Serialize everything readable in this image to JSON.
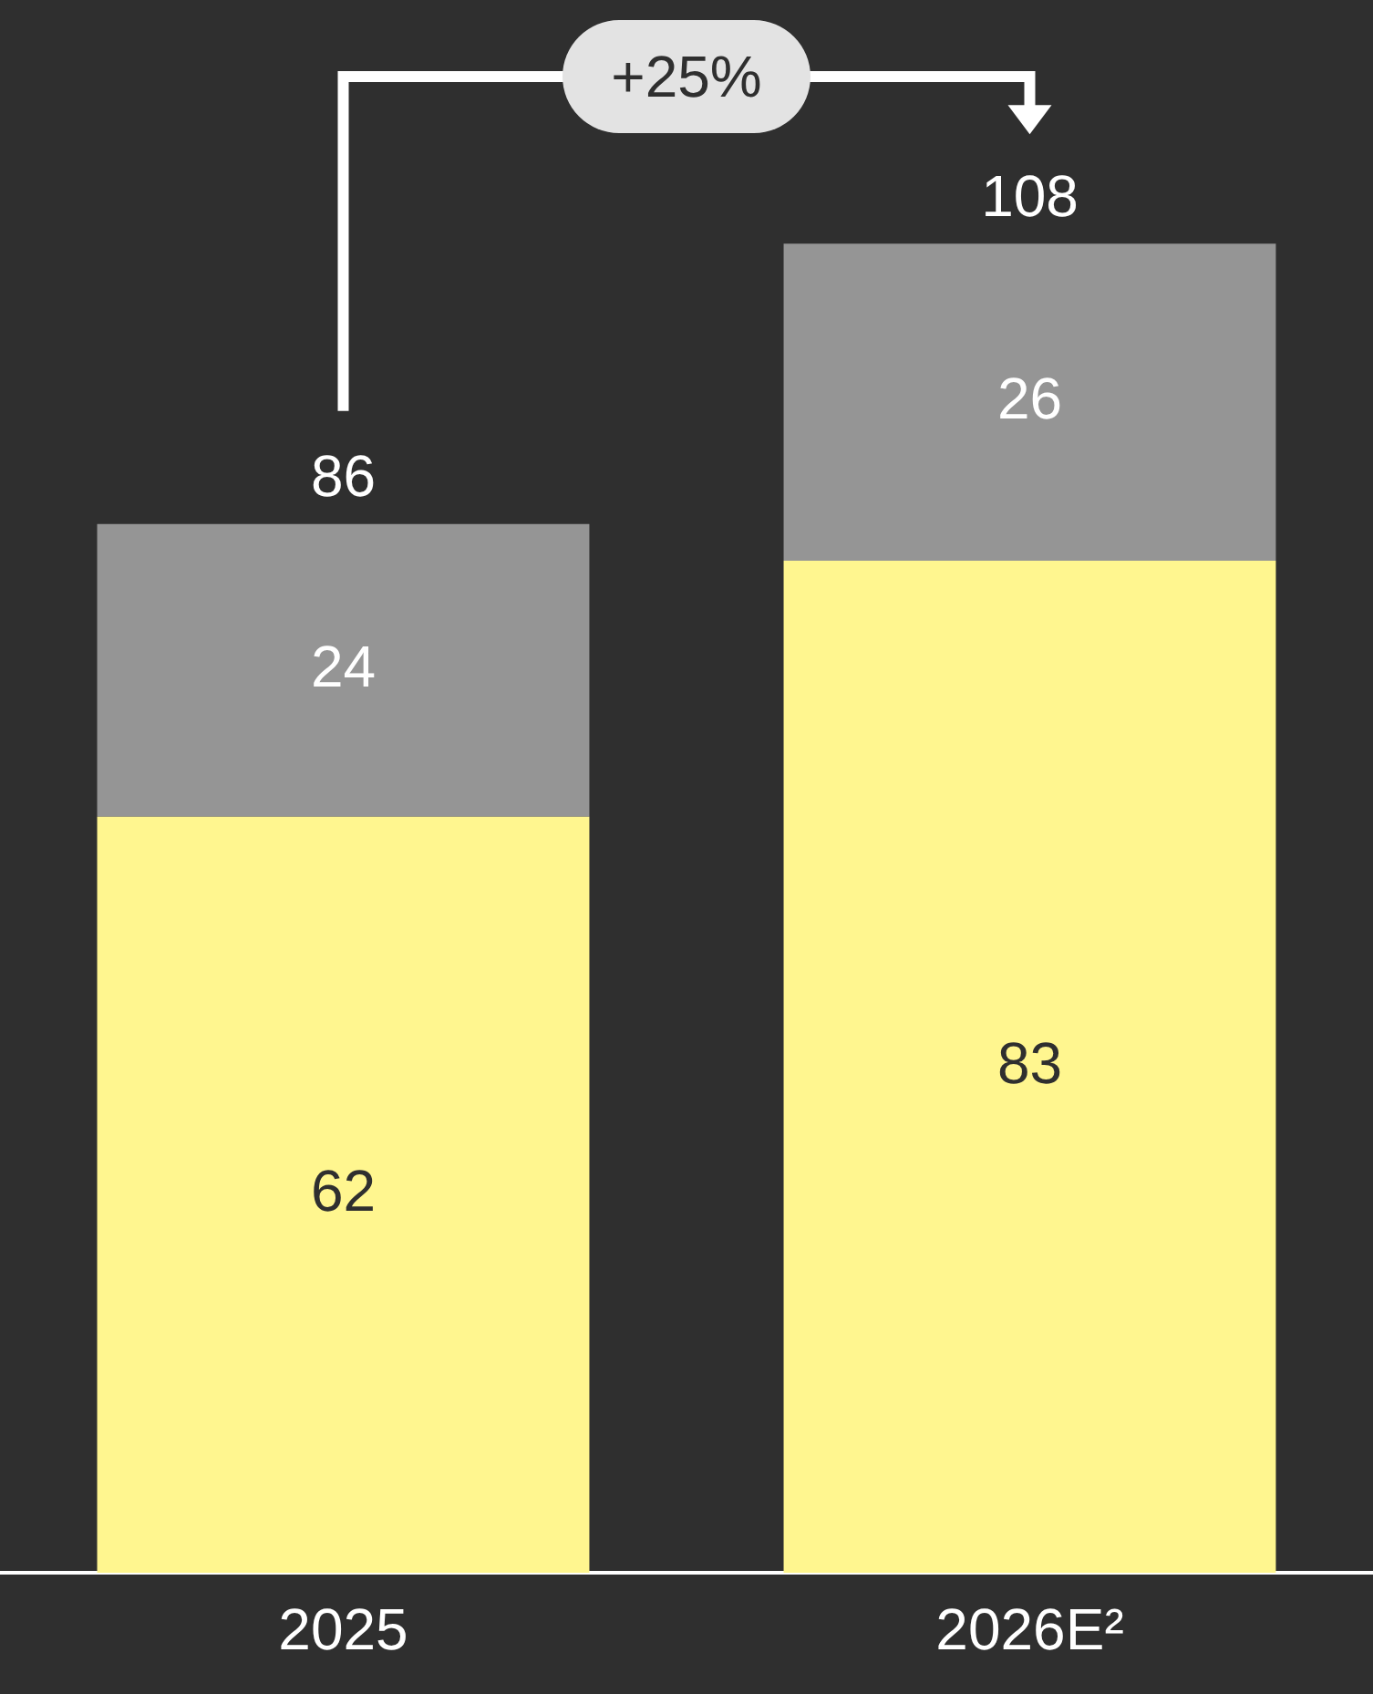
{
  "chart_data": {
    "type": "bar",
    "stacked": true,
    "categories": [
      "2025",
      "2026E²"
    ],
    "series": [
      {
        "color": "#fff68f",
        "values": [
          62,
          83
        ]
      },
      {
        "color": "#959595",
        "values": [
          24,
          26
        ]
      }
    ],
    "tick_labels": "x",
    "data_labels": true,
    "totals": [
      "86",
      "108"
    ],
    "legend": false,
    "annotations": [
      "+25%"
    ]
  }
}
